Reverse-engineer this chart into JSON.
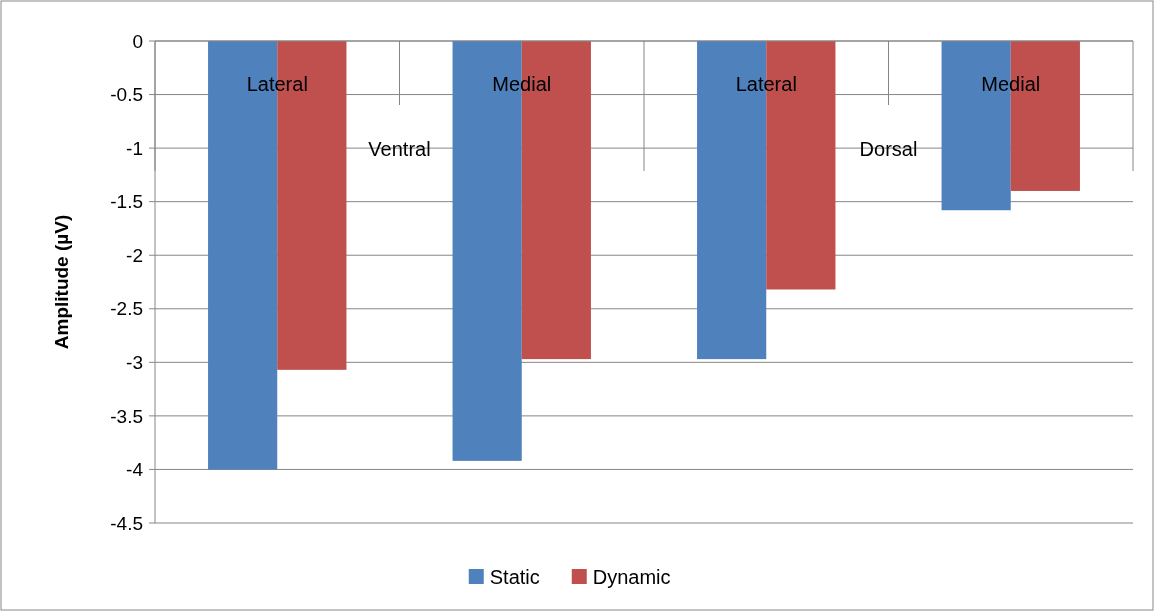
{
  "chart_data": {
    "type": "bar",
    "ylabel": "Amplitude (µV)",
    "categories": [
      "Lateral",
      "Medial",
      "Lateral",
      "Medial"
    ],
    "series": [
      {
        "name": "Static",
        "color": "#4f81bd",
        "values": [
          -4.0,
          -3.92,
          -2.97,
          -1.58
        ]
      },
      {
        "name": "Dynamic",
        "color": "#c0504d",
        "values": [
          -3.07,
          -2.97,
          -2.32,
          -1.4
        ]
      }
    ],
    "annotations": [
      "Ventral",
      "Dorsal"
    ],
    "ylim": [
      -4.5,
      0
    ],
    "yticks": [
      0,
      -0.5,
      -1,
      -1.5,
      -2,
      -2.5,
      -3,
      -3.5,
      -4,
      -4.5
    ],
    "grid": "y",
    "legend": "bottom"
  }
}
